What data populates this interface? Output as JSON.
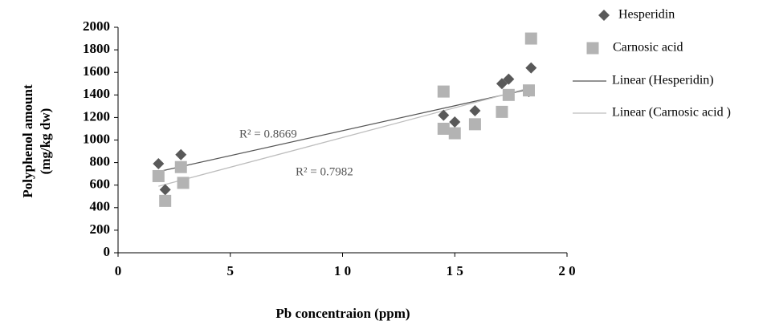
{
  "chart_data": {
    "type": "scatter",
    "xlabel": "Pb concentraion (ppm)",
    "ylabel": [
      "Polyphenol amount",
      "(mg/kg dw)"
    ],
    "xlim": [
      0,
      20
    ],
    "ylim": [
      0,
      2000
    ],
    "xticks": [
      0,
      5,
      {
        "value": 10,
        "label": "1 0"
      },
      {
        "value": 15,
        "label": "1 5"
      },
      {
        "value": 20,
        "label": "2 0"
      }
    ],
    "yticks": [
      0,
      200,
      400,
      600,
      800,
      1000,
      1200,
      1400,
      1600,
      1800,
      2000
    ],
    "series": [
      {
        "name": "Hesperidin",
        "color": "#595959",
        "marker": "diamond",
        "x": [
          1.8,
          2.1,
          2.8,
          14.5,
          15.0,
          15.9,
          17.1,
          17.4,
          18.4,
          18.3
        ],
        "values": [
          790,
          560,
          870,
          1220,
          1160,
          1260,
          1500,
          1540,
          1640,
          1430
        ]
      },
      {
        "name": "Carnosic acid",
        "color": "#b3b3b3",
        "marker": "square",
        "x": [
          1.8,
          2.1,
          2.8,
          2.9,
          14.5,
          14.5,
          15.0,
          15.9,
          17.1,
          17.4,
          18.4,
          18.3
        ],
        "values": [
          680,
          460,
          760,
          620,
          1430,
          1100,
          1060,
          1140,
          1250,
          1400,
          1900,
          1440
        ]
      }
    ],
    "trendlines": [
      {
        "name": "Linear (Hesperidin)",
        "color": "#555555",
        "x": [
          1.8,
          18.3
        ],
        "values": [
          720,
          1450
        ]
      },
      {
        "name": "Linear (Carnosic acid )",
        "color": "#bdbdbd",
        "x": [
          1.8,
          18.3
        ],
        "values": [
          590,
          1460
        ]
      }
    ],
    "annotations": [
      "R² = 0.8669",
      "R² = 0.7982"
    ]
  }
}
